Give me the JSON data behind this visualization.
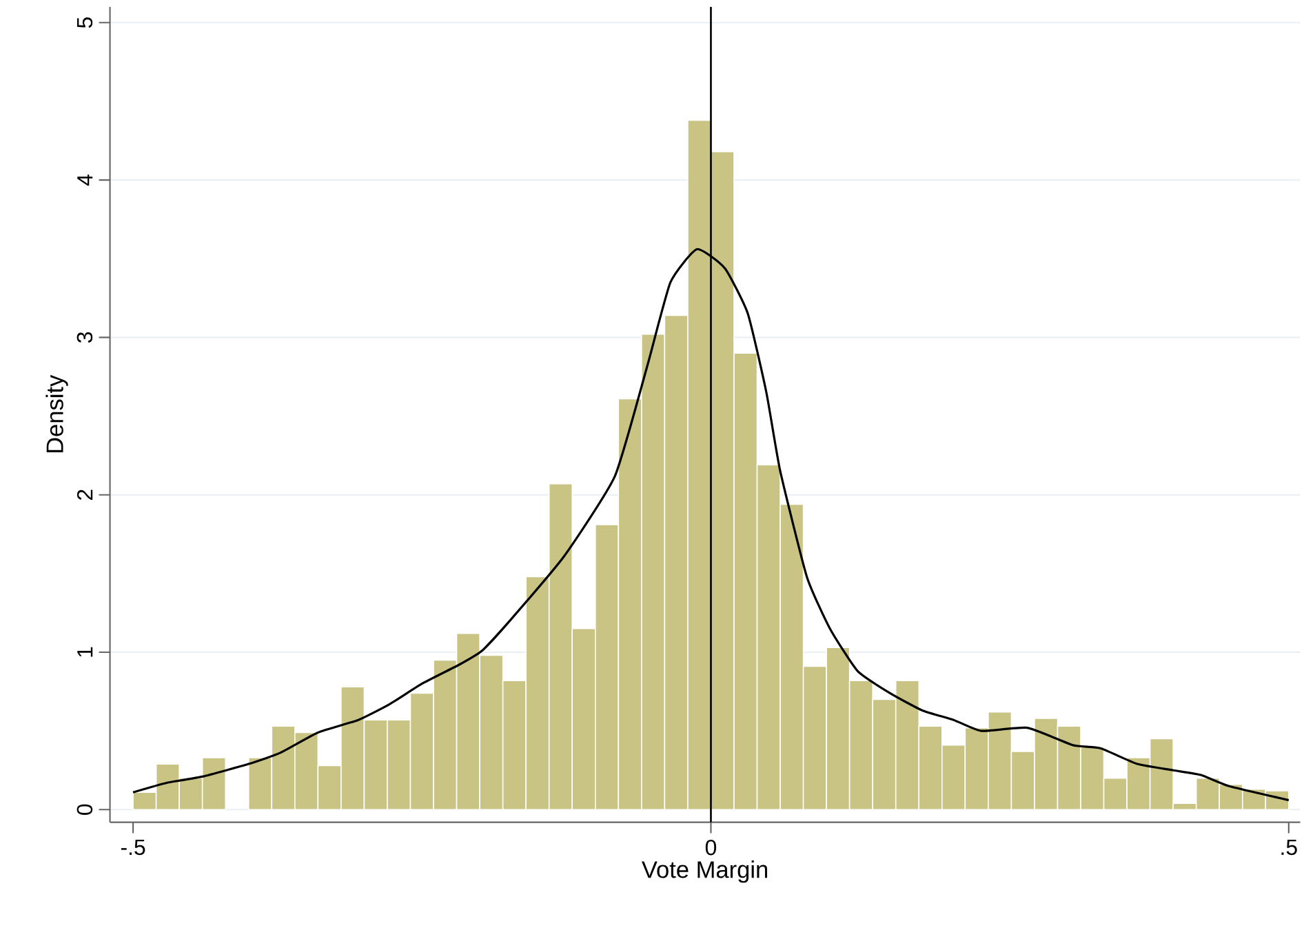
{
  "chart_data": {
    "type": "histogram",
    "xlabel": "Vote Margin",
    "ylabel": "Density",
    "bins": [
      -0.5,
      -0.48,
      -0.46,
      -0.44,
      -0.42,
      -0.4,
      -0.38,
      -0.36,
      -0.34,
      -0.32,
      -0.3,
      -0.28,
      -0.26,
      -0.24,
      -0.22,
      -0.2,
      -0.18,
      -0.16,
      -0.14,
      -0.12,
      -0.1,
      -0.08,
      -0.06,
      -0.04,
      -0.02,
      0,
      0.02,
      0.04,
      0.06,
      0.08,
      0.1,
      0.12,
      0.14,
      0.16,
      0.18,
      0.2,
      0.22,
      0.24,
      0.26,
      0.28,
      0.3,
      0.32,
      0.34,
      0.36,
      0.38,
      0.4,
      0.42,
      0.44,
      0.46,
      0.48,
      0.5
    ],
    "values": [
      0.11,
      0.29,
      0.2,
      0.33,
      0,
      0.33,
      0.53,
      0.49,
      0.28,
      0.78,
      0.57,
      0.57,
      0.74,
      0.95,
      1.12,
      0.98,
      0.82,
      1.48,
      2.07,
      1.15,
      1.81,
      2.61,
      3.02,
      3.14,
      4.38,
      4.18,
      2.9,
      2.19,
      1.94,
      0.91,
      1.03,
      0.82,
      0.7,
      0.82,
      0.53,
      0.41,
      0.52,
      0.62,
      0.37,
      0.58,
      0.53,
      0.4,
      0.2,
      0.33,
      0.45,
      0.04,
      0.2,
      0.16,
      0.13,
      0.12
    ],
    "color": "#c9c384",
    "series": [
      {
        "type": "line",
        "color": "#000000",
        "x": [
          -0.5,
          -0.471,
          -0.44,
          -0.4,
          -0.373,
          -0.34,
          -0.305,
          -0.278,
          -0.25,
          -0.218,
          -0.198,
          -0.174,
          -0.127,
          -0.083,
          -0.055,
          -0.035,
          -0.012,
          0.012,
          0.032,
          0.048,
          0.06,
          0.083,
          0.103,
          0.127,
          0.155,
          0.183,
          0.21,
          0.234,
          0.274,
          0.313,
          0.337,
          0.369,
          0.4,
          0.424,
          0.448,
          0.5
        ],
        "values": [
          0.11,
          0.17,
          0.21,
          0.29,
          0.36,
          0.49,
          0.57,
          0.67,
          0.8,
          0.92,
          1.01,
          1.2,
          1.61,
          2.12,
          2.82,
          3.35,
          3.56,
          3.44,
          3.15,
          2.65,
          2.15,
          1.48,
          1.15,
          0.88,
          0.74,
          0.63,
          0.57,
          0.5,
          0.52,
          0.41,
          0.39,
          0.29,
          0.25,
          0.22,
          0.15,
          0.06
        ]
      }
    ],
    "ref_lines": [
      {
        "axis": "x",
        "value": 0,
        "color": "#000000"
      }
    ],
    "xlim": [
      -0.52,
      0.51
    ],
    "ylim": [
      -0.08,
      5.1
    ],
    "xticks": [
      {
        "value": -0.5,
        "label": "-.5"
      },
      0,
      {
        "value": 0.5,
        "label": ".5"
      }
    ],
    "yticks": [
      0,
      1,
      2,
      3,
      4,
      5
    ],
    "grid": "y"
  }
}
